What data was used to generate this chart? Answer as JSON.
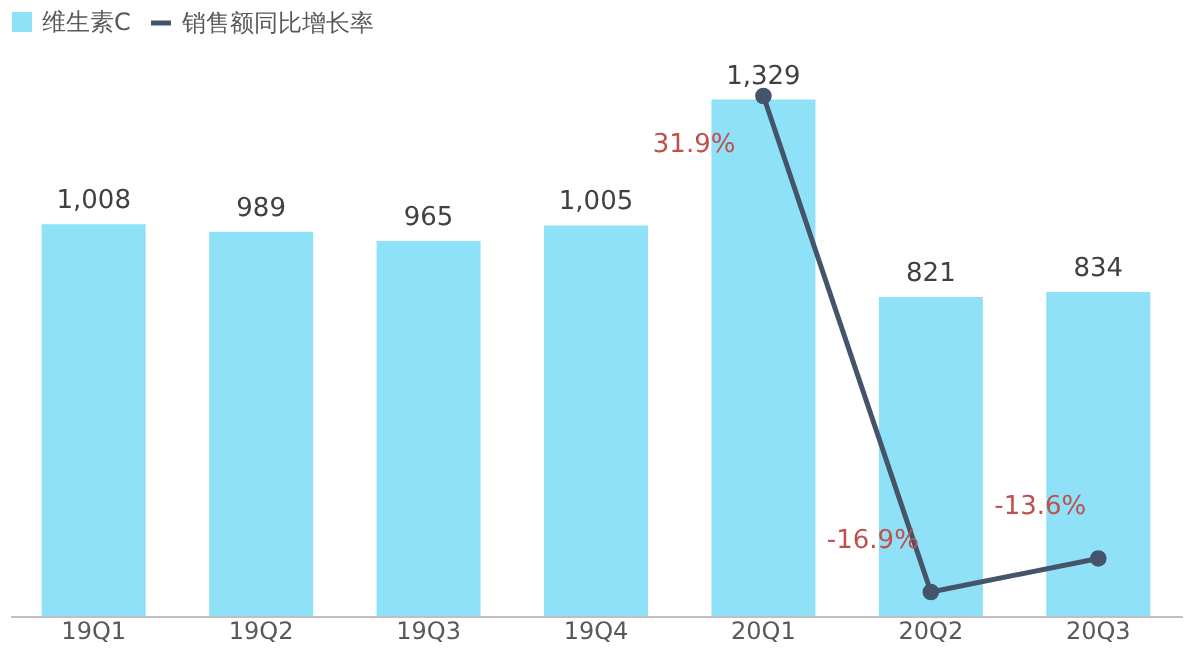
{
  "chart_data": {
    "type": "bar",
    "categories": [
      "19Q1",
      "19Q2",
      "19Q3",
      "19Q4",
      "20Q1",
      "20Q2",
      "20Q3"
    ],
    "series": [
      {
        "name": "维生素C",
        "color": "#8fe1f8",
        "values": [
          1008,
          989,
          965,
          1005,
          1329,
          821,
          834
        ],
        "value_labels": [
          "1,008",
          "989",
          "965",
          "1,005",
          "1,329",
          "821",
          "834"
        ]
      },
      {
        "name": "销售额同比增长率",
        "type": "line",
        "axis": "y2",
        "color": "#44546a",
        "values": [
          null,
          null,
          null,
          null,
          31.9,
          -16.9,
          -13.6
        ],
        "value_labels": [
          null,
          null,
          null,
          null,
          "31.9%",
          "-16.9%",
          "-13.6%"
        ]
      }
    ],
    "legend": "top",
    "marker": "circle",
    "grid": false,
    "tick_labels": "x"
  }
}
